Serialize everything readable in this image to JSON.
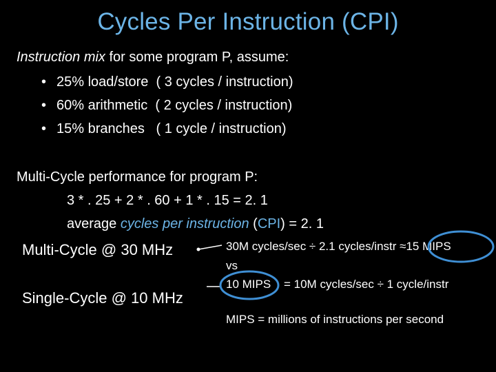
{
  "title": "Cycles Per Instruction (CPI)",
  "mix": {
    "lead_italic": "Instruction mix",
    "lead_rest": " for some program P, assume:",
    "items": [
      {
        "bullet": "•",
        "text": "25% load/store  ( 3 cycles / instruction)"
      },
      {
        "bullet": "•",
        "text": "60% arithmetic  ( 2 cycles / instruction)"
      },
      {
        "bullet": "•",
        "text": "15% branches   ( 1 cycle / instruction)"
      }
    ]
  },
  "perf": {
    "heading": "Multi-Cycle performance for program P:",
    "formula": "3 * . 25 + 2 * . 60 + 1 * . 15 = 2. 1",
    "avg_prefix": "average ",
    "avg_italic": "cycles per instruction",
    "avg_cpi_paren_open": " (",
    "avg_cpi": "CPI",
    "avg_suffix": ") = 2. 1"
  },
  "compare": {
    "multi_label": "Multi-Cycle @ 30 MHz",
    "single_label": "Single-Cycle @ 10 MHz",
    "multi_calc": "30M cycles/sec ÷ 2.1 cycles/instr ≈15 MIPS",
    "vs": "vs",
    "single_mips": "10 MIPS",
    "single_calc": "= 10M cycles/sec ÷ 1 cycle/instr"
  },
  "footnote": "MIPS = millions of instructions per second",
  "colors": {
    "accent": "#6cb4e6",
    "background": "#000000",
    "text": "#ffffff",
    "highlight_circle": "#3f8fd4"
  }
}
